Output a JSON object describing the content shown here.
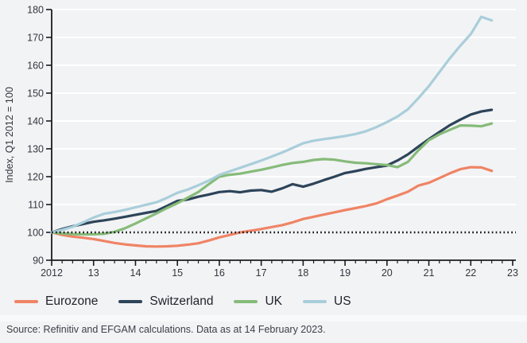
{
  "chart_data": {
    "type": "line",
    "title": "",
    "xlabel": "",
    "ylabel": "Index, Q1 2012 = 100",
    "ylim": [
      90,
      180
    ],
    "yticks": [
      90,
      100,
      110,
      120,
      130,
      140,
      150,
      160,
      170,
      180
    ],
    "xlim": [
      2012,
      2023
    ],
    "xtick_years": [
      2012,
      2013,
      2014,
      2015,
      2016,
      2017,
      2018,
      2019,
      2020,
      2021,
      2022,
      2023
    ],
    "xtick_labels": [
      "2012",
      "13",
      "14",
      "15",
      "16",
      "17",
      "18",
      "19",
      "20",
      "21",
      "22",
      "23"
    ],
    "minor_tick_step_years": 0.25,
    "grid": "horizontal-white-gridlines",
    "legend_position": "bottom",
    "reference_line": {
      "value": 100,
      "style": "dotted",
      "color": "#1B1B1F"
    },
    "x_start": 2012,
    "x_step": 0.25,
    "series": [
      {
        "name": "Eurozone",
        "color": "#EF8465",
        "values": [
          100,
          99.1,
          98.5,
          98.1,
          97.6,
          96.9,
          96.2,
          95.7,
          95.3,
          95.0,
          94.9,
          95.0,
          95.2,
          95.6,
          96.1,
          97.1,
          98.2,
          99.1,
          100.0,
          100.6,
          101.2,
          101.9,
          102.6,
          103.6,
          104.8,
          105.6,
          106.4,
          107.2,
          108.0,
          108.7,
          109.5,
          110.4,
          111.9,
          113.2,
          114.6,
          116.8,
          117.8,
          119.5,
          121.2,
          122.7,
          123.4,
          123.3,
          122.1
        ]
      },
      {
        "name": "Switzerland",
        "color": "#2D4459",
        "values": [
          100,
          101.2,
          102.2,
          103.0,
          103.8,
          104.3,
          104.9,
          105.6,
          106.3,
          107.0,
          107.7,
          109.5,
          111.3,
          111.8,
          112.8,
          113.6,
          114.5,
          114.8,
          114.4,
          115.0,
          115.2,
          114.6,
          115.8,
          117.3,
          116.4,
          117.5,
          118.8,
          120.0,
          121.3,
          122.0,
          122.8,
          123.4,
          124.0,
          125.8,
          128.0,
          130.8,
          133.5,
          136.0,
          138.5,
          140.5,
          142.3,
          143.4,
          144.0
        ]
      },
      {
        "name": "UK",
        "color": "#86BB79",
        "values": [
          100,
          99.6,
          99.4,
          99.3,
          99.3,
          99.5,
          100.2,
          101.5,
          103.2,
          105.0,
          106.8,
          108.7,
          110.5,
          112.5,
          114.5,
          117.3,
          120.0,
          120.7,
          121.1,
          121.8,
          122.5,
          123.3,
          124.2,
          124.9,
          125.3,
          126.0,
          126.3,
          126.1,
          125.5,
          125.0,
          124.8,
          124.5,
          124.2,
          123.4,
          125.3,
          129.5,
          133.1,
          135.2,
          136.8,
          138.4,
          138.3,
          138.1,
          139.1
        ]
      },
      {
        "name": "US",
        "color": "#A9CEDA",
        "values": [
          100,
          100.9,
          102.0,
          103.6,
          105.3,
          106.7,
          107.3,
          108.1,
          109.0,
          109.9,
          110.8,
          112.4,
          114.2,
          115.4,
          116.9,
          118.6,
          120.6,
          121.9,
          123.2,
          124.5,
          125.8,
          127.2,
          128.7,
          130.3,
          132.0,
          132.9,
          133.5,
          134.0,
          134.6,
          135.3,
          136.3,
          137.8,
          139.6,
          141.6,
          144.2,
          148.2,
          152.5,
          157.5,
          162.5,
          167.0,
          171.2,
          177.4,
          176.1
        ]
      }
    ]
  },
  "footer": {
    "source": "Source: Refinitiv and EFGAM calculations. Data as at 14 February 2023."
  },
  "colors": {
    "background": "#F2F3F5",
    "grid": "#FFFFFF",
    "axis": "#1B1B1F",
    "tick_text": "#35353F",
    "legend_text": "#23232D",
    "source_text": "#3E3E48"
  }
}
